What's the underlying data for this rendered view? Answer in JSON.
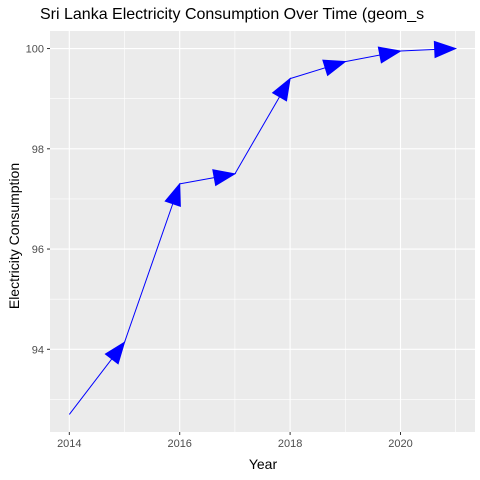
{
  "chart_data": {
    "type": "line",
    "title": "Sri Lanka Electricity Consumption Over Time (geom_s",
    "xlabel": "Year",
    "ylabel": "Electricity Consumption",
    "x": [
      2014,
      2015,
      2016,
      2017,
      2018,
      2019,
      2020,
      2021
    ],
    "series": [
      {
        "values": [
          92.7,
          94.14,
          97.3,
          97.5,
          99.4,
          99.74,
          99.95,
          100.0
        ]
      }
    ],
    "xlim": [
      2013.65,
      2021.35
    ],
    "ylim": [
      92.35,
      100.35
    ],
    "x_ticks": [
      "2014",
      "2016",
      "2018",
      "2020"
    ],
    "y_ticks": [
      "94",
      "96",
      "98",
      "100"
    ],
    "grid": true,
    "legend": "none",
    "colors": {
      "line": "#0000ff",
      "panel": "#ebebeb",
      "grid": "#ffffff"
    }
  }
}
